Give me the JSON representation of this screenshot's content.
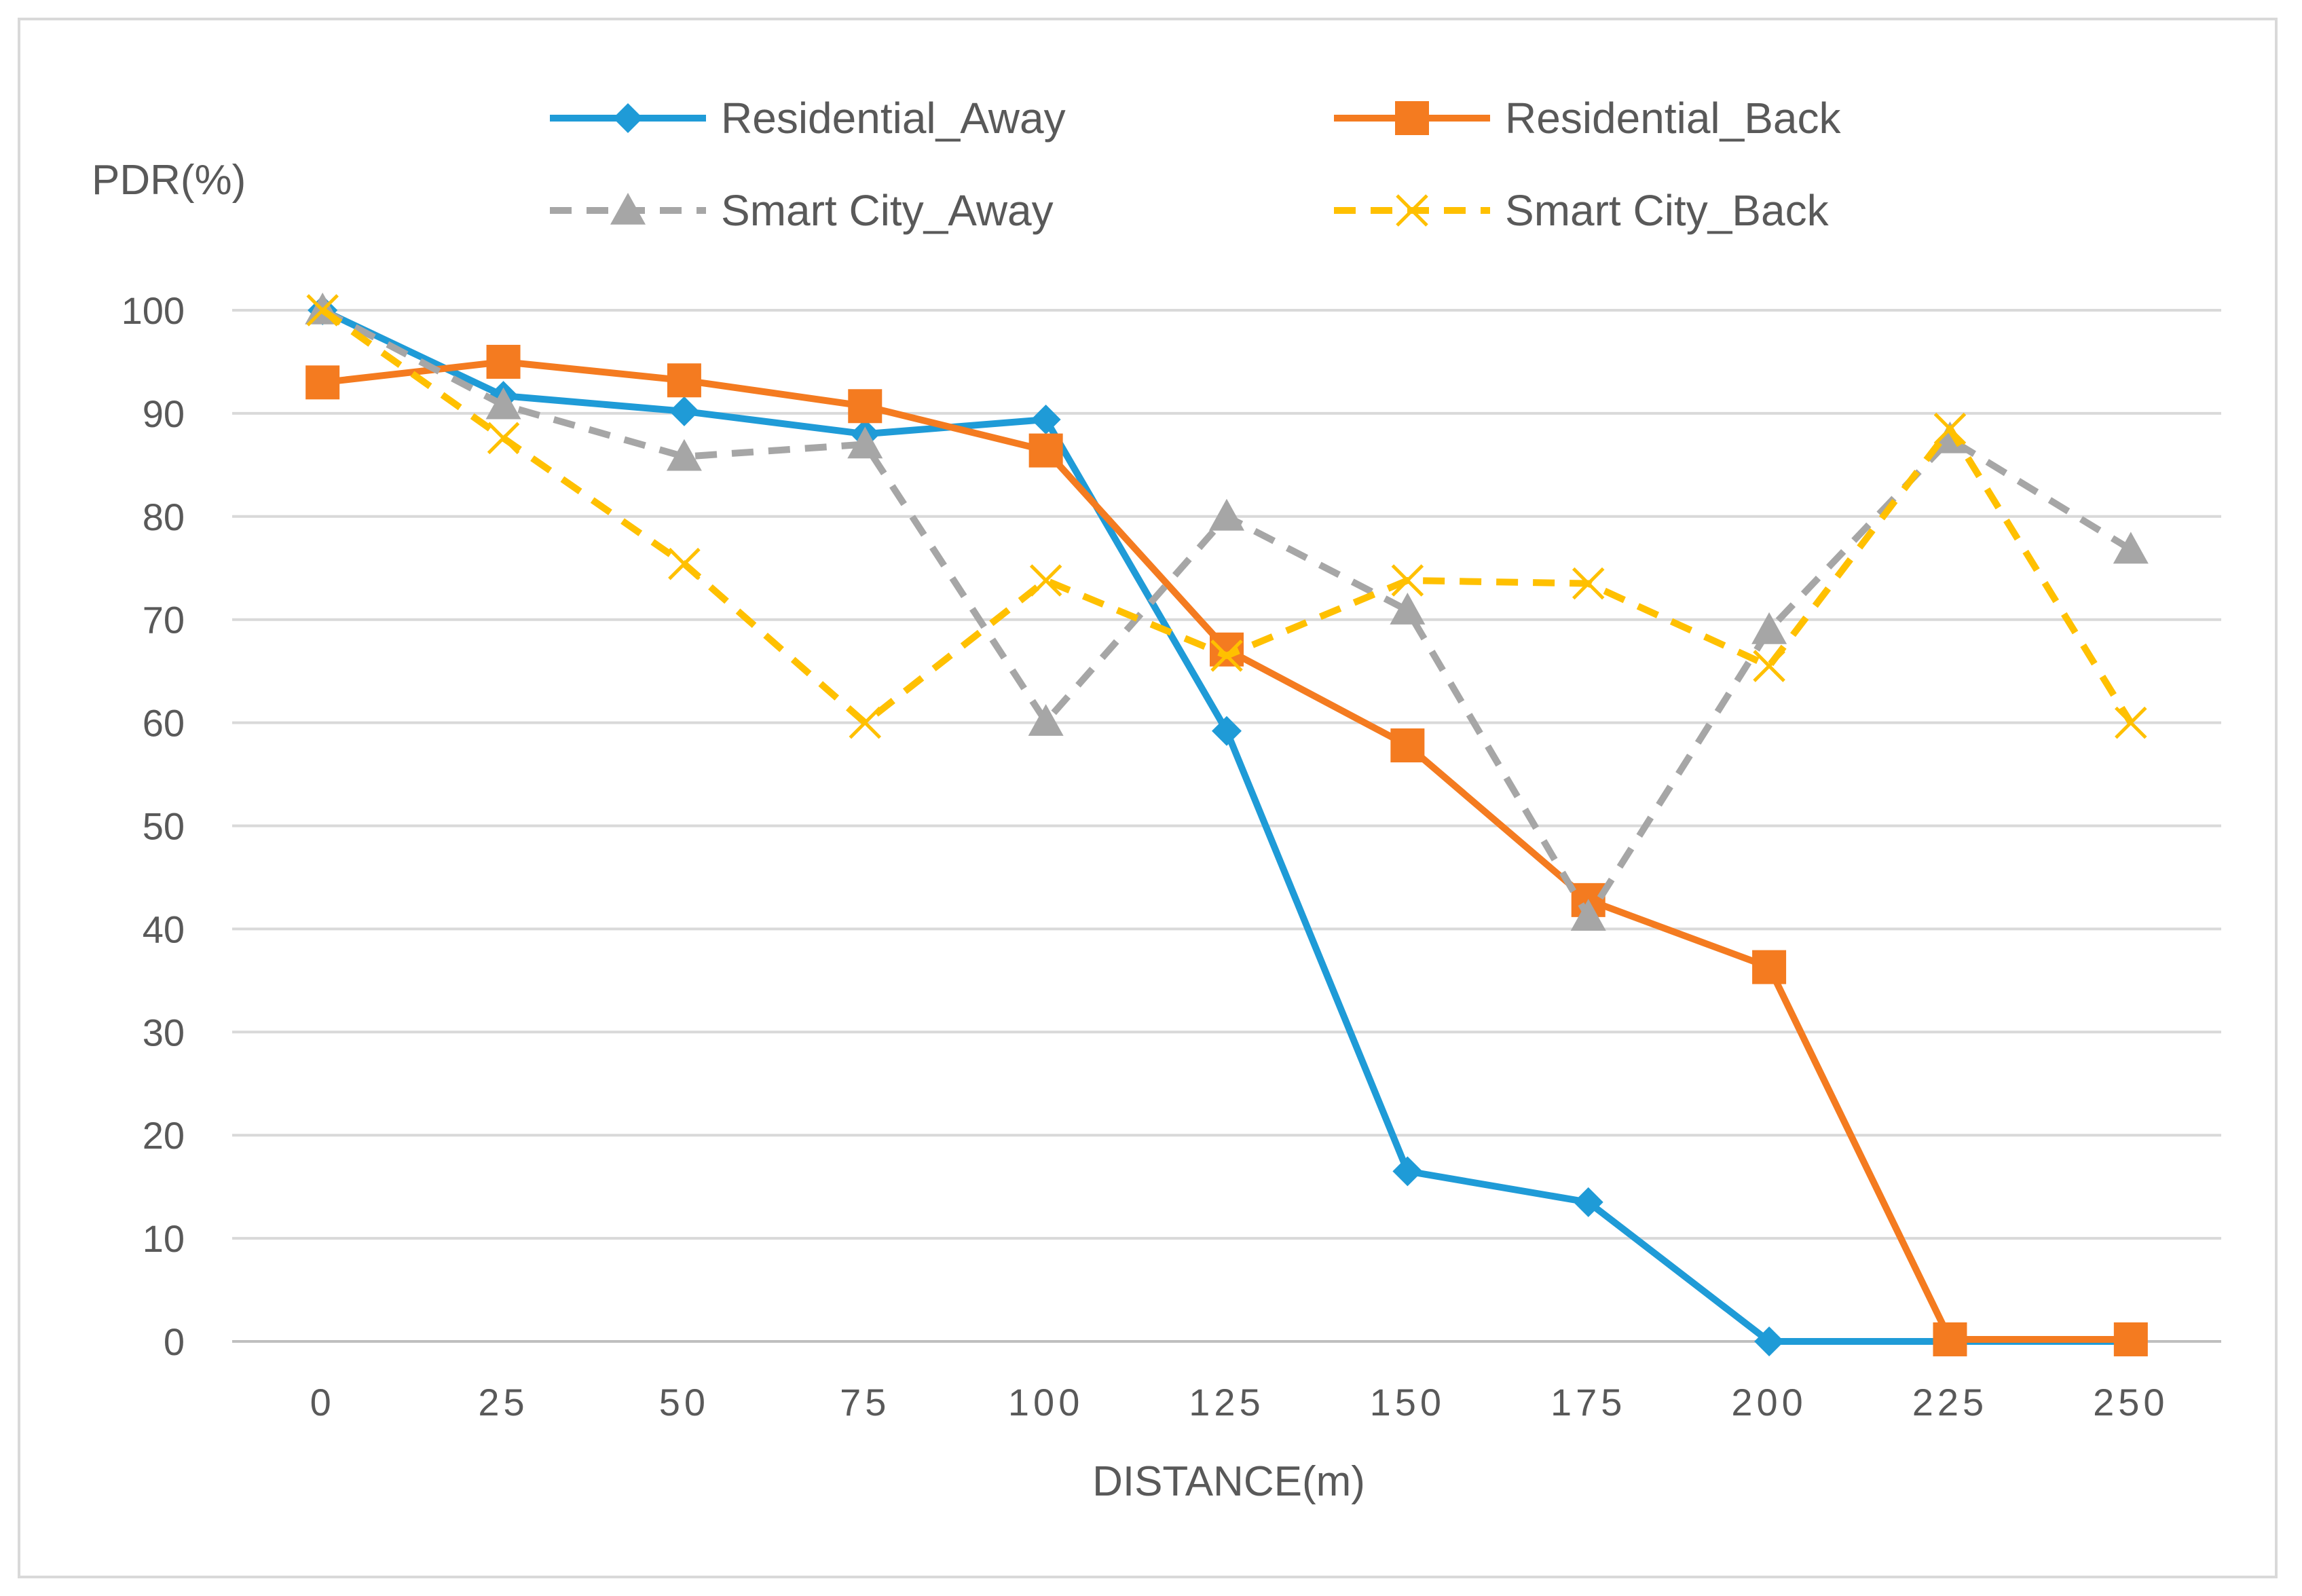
{
  "chart_data": {
    "type": "line",
    "title": "",
    "xlabel": "DISTANCE(m)",
    "ylabel": "PDR(%)",
    "categories": [
      "0",
      "25",
      "50",
      "75",
      "100",
      "125",
      "150",
      "175",
      "200",
      "225",
      "250"
    ],
    "ylim": [
      0,
      100
    ],
    "yticks": [
      "0",
      "10",
      "20",
      "30",
      "40",
      "50",
      "60",
      "70",
      "80",
      "90",
      "100"
    ],
    "grid": true,
    "legend_position": "top",
    "series": [
      {
        "name": "Residential_Away",
        "color": "#1f9bd7",
        "dash": "solid",
        "marker": "diamond",
        "values": [
          100,
          91.7,
          90.2,
          88,
          89.4,
          59.2,
          16.5,
          13.5,
          0,
          0,
          0
        ]
      },
      {
        "name": "Residential_Back",
        "color": "#f47b20",
        "dash": "solid",
        "marker": "square",
        "values": [
          93,
          95,
          93.2,
          90.7,
          86.4,
          67.1,
          57.8,
          42.8,
          36.3,
          0.2,
          0.2
        ]
      },
      {
        "name": "Smart City_Away",
        "color": "#a6a6a6",
        "dash": "dashed",
        "marker": "triangle",
        "values": [
          100,
          90.8,
          85.8,
          87,
          60.1,
          80,
          70.9,
          41.2,
          69,
          87.5,
          76.8
        ]
      },
      {
        "name": "Smart City_Back",
        "color": "#ffc000",
        "dash": "dashed",
        "marker": "x",
        "values": [
          100,
          87.6,
          75.4,
          60,
          73.8,
          66.5,
          73.8,
          73.5,
          65.5,
          88.5,
          60
        ]
      }
    ]
  }
}
